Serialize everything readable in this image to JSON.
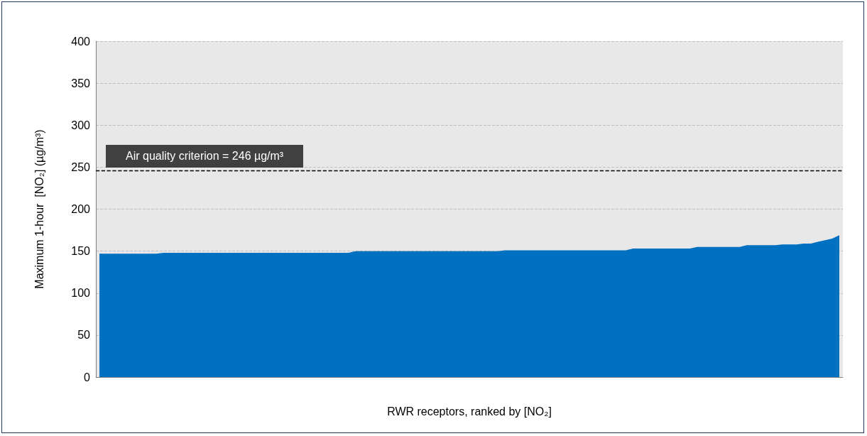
{
  "chart_data": {
    "type": "area",
    "xlabel": "RWR receptors, ranked by [NO₂]",
    "ylabel": "Maximum 1-hour  [NO₂] (µg/m³)",
    "categories": [
      null,
      null,
      null,
      null,
      null,
      null,
      null,
      null,
      null,
      null,
      null,
      null,
      null,
      null,
      null,
      null,
      null,
      null,
      null,
      null,
      null,
      null,
      null,
      null,
      null,
      null,
      null,
      null,
      null,
      null,
      null,
      null,
      null,
      null,
      null,
      null,
      null,
      null,
      null,
      null,
      null,
      null,
      null,
      null,
      null,
      null,
      null,
      null,
      null,
      null,
      null,
      null,
      null,
      null,
      null,
      null,
      null,
      null,
      null,
      null,
      null,
      null,
      null,
      null,
      null,
      null,
      null,
      null,
      null,
      null,
      null,
      null,
      null,
      null,
      null,
      null,
      null,
      null,
      null,
      null,
      null,
      null,
      null,
      null,
      null,
      null,
      null,
      null,
      null,
      null,
      null,
      null,
      null,
      null,
      null,
      null,
      null,
      null,
      null,
      null,
      null,
      null,
      null,
      null,
      null
    ],
    "values": [
      147,
      147,
      147,
      147,
      147,
      147,
      147,
      147,
      147,
      148,
      148,
      148,
      148,
      148,
      148,
      148,
      148,
      148,
      148,
      148,
      148,
      148,
      148,
      148,
      148,
      148,
      148,
      148,
      148,
      148,
      148,
      148,
      148,
      148,
      148,
      148,
      150,
      150,
      150,
      150,
      150,
      150,
      150,
      150,
      150,
      150,
      150,
      150,
      150,
      150,
      150,
      150,
      150,
      150,
      150,
      150,
      150,
      151,
      151,
      151,
      151,
      151,
      151,
      151,
      151,
      151,
      151,
      151,
      151,
      151,
      151,
      151,
      151,
      151,
      151,
      153,
      153,
      153,
      153,
      153,
      153,
      153,
      153,
      153,
      155,
      155,
      155,
      155,
      155,
      155,
      155,
      157,
      157,
      157,
      157,
      157,
      158,
      158,
      158,
      159,
      159,
      161,
      163,
      165,
      169
    ],
    "color": "#0070c0",
    "ylim": [
      0,
      400
    ],
    "yticks": [
      0,
      50,
      100,
      150,
      200,
      250,
      300,
      350,
      400
    ],
    "grid": "y",
    "ref_lines": [
      {
        "axis": "y",
        "value": 246,
        "label": "Air quality criterion = 246 µg/m³",
        "color": "#000000",
        "line_style": "dashed"
      }
    ]
  }
}
